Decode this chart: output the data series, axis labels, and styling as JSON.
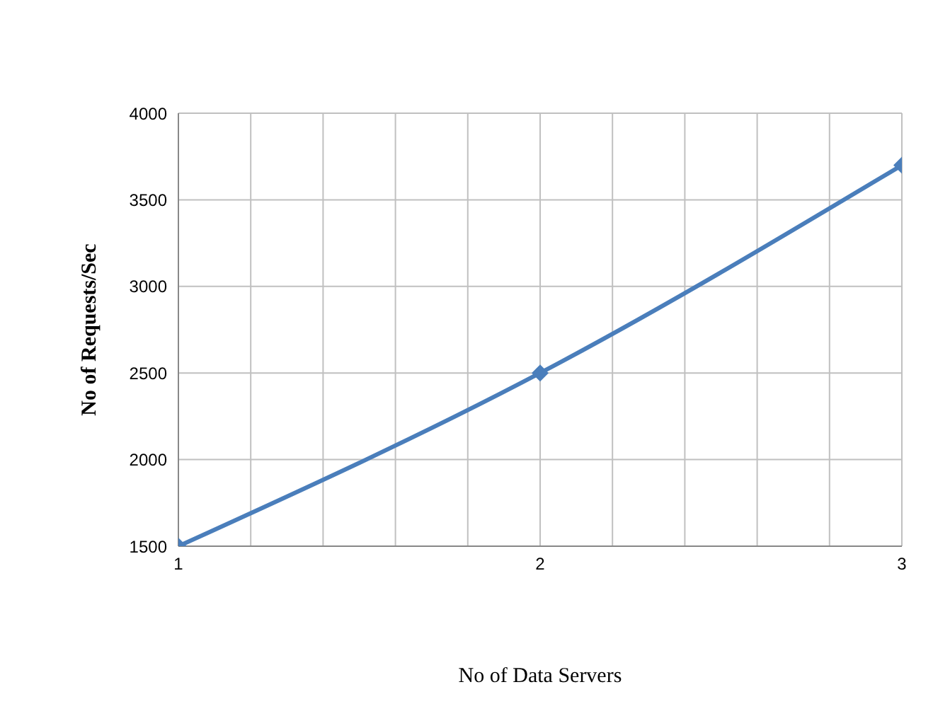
{
  "chart_data": {
    "type": "line",
    "xlabel": "No  of  Data Servers",
    "ylabel": "No of Requests/Sec",
    "x": [
      1,
      2,
      3
    ],
    "series": [
      {
        "color": "#4a7ebb",
        "values": [
          1500,
          2500,
          3700
        ]
      }
    ],
    "xlim": [
      1,
      3
    ],
    "xticks": [
      1,
      {
        "value": 1.2,
        "label": null
      },
      {
        "value": 1.4,
        "label": null
      },
      {
        "value": 1.6,
        "label": null
      },
      {
        "value": 1.8,
        "label": null
      },
      2,
      {
        "value": 2.2,
        "label": null
      },
      {
        "value": 2.4,
        "label": null
      },
      {
        "value": 2.6,
        "label": null
      },
      {
        "value": 2.8,
        "label": null
      },
      3
    ],
    "ylim": [
      1500,
      4000
    ],
    "yticks": [
      1500,
      2000,
      2500,
      3000,
      3500,
      4000
    ],
    "grid": true,
    "marker": "diamond",
    "line_style": "solid",
    "legend": false
  }
}
